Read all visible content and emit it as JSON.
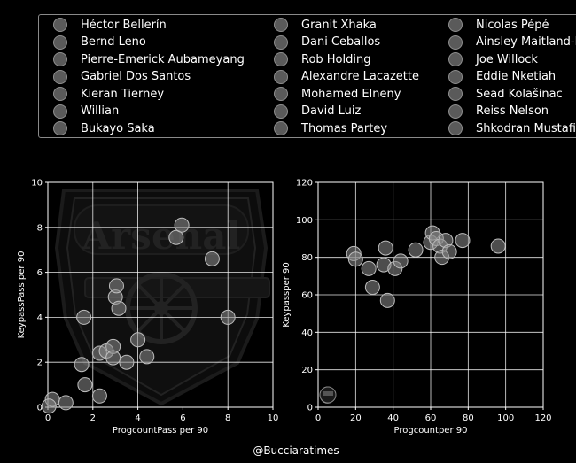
{
  "legend": {
    "players": [
      "Héctor Bellerín",
      "Bernd Leno",
      "Pierre-Emerick Aubameyang",
      "Gabriel Dos Santos",
      "Kieran Tierney",
      "Willian",
      "Bukayo Saka",
      "Granit Xhaka",
      "Dani Ceballos",
      "Rob Holding",
      "Alexandre Lacazette",
      "Mohamed Elneny",
      "David Luiz",
      "Thomas Partey",
      "Nicolas Pépé",
      "Ainsley Maitland-Niles",
      "Joe Willock",
      "Eddie Nketiah",
      "Sead Kolašinac",
      "Reiss Nelson",
      "Shkodran Mustafi"
    ]
  },
  "watermark": {
    "text": "Arsenal"
  },
  "credit": "@Bucciaratimes",
  "colors": {
    "background": "#000000",
    "marker_fill": "#8c8c8c",
    "marker_edge": "#bdbdbd",
    "grid": "#ffffff"
  },
  "chart_data": [
    {
      "type": "scatter",
      "xlabel": "ProgcountPass per 90",
      "ylabel": "KeypassPass per 90",
      "xlim": [
        0,
        10
      ],
      "ylim": [
        0,
        10
      ],
      "xticks": [
        "0",
        "2",
        "4",
        "6",
        "8",
        "10"
      ],
      "yticks": [
        "0",
        "2",
        "4",
        "6",
        "8",
        "10"
      ],
      "grid": true,
      "points": [
        {
          "x": 0.2,
          "y": 0.35
        },
        {
          "x": 0.8,
          "y": 0.2
        },
        {
          "x": 0.05,
          "y": 0.05
        },
        {
          "x": 1.5,
          "y": 1.9
        },
        {
          "x": 1.65,
          "y": 1.0
        },
        {
          "x": 1.6,
          "y": 4.0
        },
        {
          "x": 2.3,
          "y": 0.5
        },
        {
          "x": 2.3,
          "y": 2.4
        },
        {
          "x": 2.6,
          "y": 2.5
        },
        {
          "x": 2.9,
          "y": 2.7
        },
        {
          "x": 2.9,
          "y": 2.2
        },
        {
          "x": 3.0,
          "y": 4.9
        },
        {
          "x": 3.05,
          "y": 5.4
        },
        {
          "x": 3.15,
          "y": 4.4
        },
        {
          "x": 3.5,
          "y": 2.0
        },
        {
          "x": 4.0,
          "y": 3.0
        },
        {
          "x": 4.4,
          "y": 2.25
        },
        {
          "x": 5.7,
          "y": 7.55
        },
        {
          "x": 5.95,
          "y": 8.1
        },
        {
          "x": 7.3,
          "y": 6.6
        },
        {
          "x": 8.0,
          "y": 4.0
        }
      ]
    },
    {
      "type": "scatter",
      "xlabel": "Progcountper 90",
      "ylabel": "Keypassper 90",
      "xlim": [
        0,
        120
      ],
      "ylim": [
        0,
        120
      ],
      "xticks": [
        "0",
        "20",
        "40",
        "60",
        "80",
        "100",
        "120"
      ],
      "yticks": [
        "0",
        "20",
        "40",
        "60",
        "80",
        "100",
        "120"
      ],
      "grid": true,
      "points": [
        {
          "x": 19,
          "y": 82
        },
        {
          "x": 20,
          "y": 79
        },
        {
          "x": 27,
          "y": 74
        },
        {
          "x": 29,
          "y": 64
        },
        {
          "x": 35,
          "y": 76
        },
        {
          "x": 36,
          "y": 85
        },
        {
          "x": 37,
          "y": 57
        },
        {
          "x": 41,
          "y": 74
        },
        {
          "x": 44,
          "y": 78
        },
        {
          "x": 52,
          "y": 84
        },
        {
          "x": 60,
          "y": 88
        },
        {
          "x": 61,
          "y": 93
        },
        {
          "x": 63,
          "y": 90
        },
        {
          "x": 65,
          "y": 86
        },
        {
          "x": 66,
          "y": 80
        },
        {
          "x": 68,
          "y": 89
        },
        {
          "x": 70,
          "y": 83
        },
        {
          "x": 77,
          "y": 89
        },
        {
          "x": 96,
          "y": 86
        },
        {
          "x": 5,
          "y": 7
        },
        {
          "x": 5,
          "y": 6
        }
      ]
    }
  ]
}
